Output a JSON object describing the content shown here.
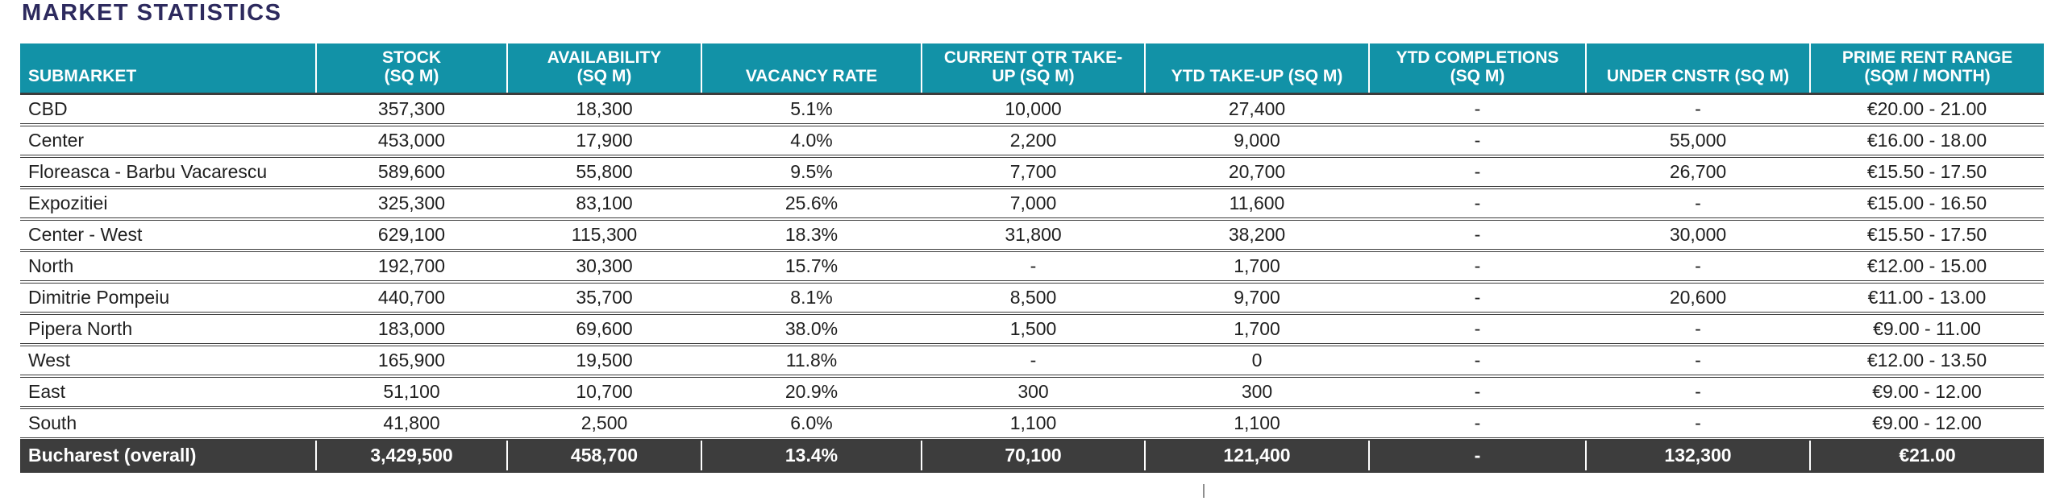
{
  "title": "MARKET STATISTICS",
  "colors": {
    "header_bg": "#1292A7",
    "header_text": "#FFFFFF",
    "title_text": "#2D2A5E",
    "total_row_bg": "#3D3D3D",
    "total_row_text": "#FFFFFF",
    "row_separator": "#3C3C3C",
    "body_text": "#1F1F1F"
  },
  "table": {
    "columns": [
      "SUBMARKET",
      "STOCK\n(SQ M)",
      "AVAILABILITY\n(SQ M)",
      "VACANCY RATE",
      "CURRENT QTR TAKE-\nUP (SQ M)",
      "YTD TAKE-UP (SQ M)",
      "YTD COMPLETIONS\n(SQ M)",
      "UNDER CNSTR (SQ M)",
      "PRIME RENT RANGE\n(SQM / MONTH)"
    ],
    "rows": [
      [
        "CBD",
        "357,300",
        "18,300",
        "5.1%",
        "10,000",
        "27,400",
        "-",
        "-",
        "€20.00 - 21.00"
      ],
      [
        "Center",
        "453,000",
        "17,900",
        "4.0%",
        "2,200",
        "9,000",
        "-",
        "55,000",
        "€16.00 - 18.00"
      ],
      [
        "Floreasca - Barbu Vacarescu",
        "589,600",
        "55,800",
        "9.5%",
        "7,700",
        "20,700",
        "-",
        "26,700",
        "€15.50 - 17.50"
      ],
      [
        "Expozitiei",
        "325,300",
        "83,100",
        "25.6%",
        "7,000",
        "11,600",
        "-",
        "-",
        "€15.00 - 16.50"
      ],
      [
        "Center - West",
        "629,100",
        "115,300",
        "18.3%",
        "31,800",
        "38,200",
        "-",
        "30,000",
        "€15.50 - 17.50"
      ],
      [
        "North",
        "192,700",
        "30,300",
        "15.7%",
        "-",
        "1,700",
        "-",
        "-",
        "€12.00 - 15.00"
      ],
      [
        "Dimitrie Pompeiu",
        "440,700",
        "35,700",
        "8.1%",
        "8,500",
        "9,700",
        "-",
        "20,600",
        "€11.00 - 13.00"
      ],
      [
        "Pipera North",
        "183,000",
        "69,600",
        "38.0%",
        "1,500",
        "1,700",
        "-",
        "-",
        "€9.00 - 11.00"
      ],
      [
        "West",
        "165,900",
        "19,500",
        "11.8%",
        "-",
        "0",
        "-",
        "-",
        "€12.00 - 13.50"
      ],
      [
        "East",
        "51,100",
        "10,700",
        "20.9%",
        "300",
        "300",
        "-",
        "-",
        "€9.00 - 12.00"
      ],
      [
        "South",
        "41,800",
        "2,500",
        "6.0%",
        "1,100",
        "1,100",
        "-",
        "-",
        "€9.00 - 12.00"
      ]
    ],
    "total_row": [
      "Bucharest (overall)",
      "3,429,500",
      "458,700",
      "13.4%",
      "70,100",
      "121,400",
      "-",
      "132,300",
      "€21.00"
    ]
  }
}
